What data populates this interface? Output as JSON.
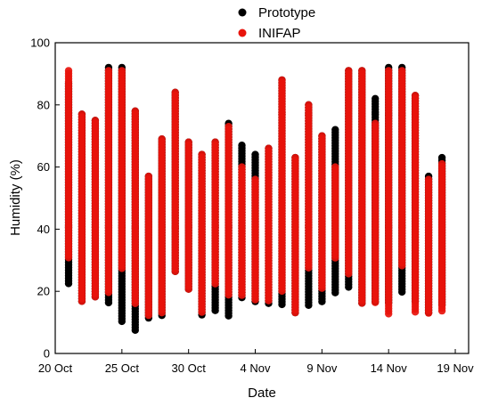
{
  "chart_data": {
    "type": "scatter",
    "title": "",
    "xlabel": "Date",
    "ylabel": "Humidity (%)",
    "ylim": [
      0,
      100
    ],
    "xlim": [
      "2023-10-20",
      "2023-11-20"
    ],
    "yticks": [
      0,
      20,
      40,
      60,
      80,
      100
    ],
    "xticks": [
      {
        "date": "2023-10-20",
        "label": "20 Oct"
      },
      {
        "date": "2023-10-25",
        "label": "25 Oct"
      },
      {
        "date": "2023-10-30",
        "label": "30 Oct"
      },
      {
        "date": "2023-11-04",
        "label": "4 Nov"
      },
      {
        "date": "2023-11-09",
        "label": "9 Nov"
      },
      {
        "date": "2023-11-14",
        "label": "14 Nov"
      },
      {
        "date": "2023-11-19",
        "label": "19 Nov"
      }
    ],
    "legend_position": "top-center",
    "grid": false,
    "series": [
      {
        "name": "Prototype",
        "color": "#000000",
        "ranges": [
          {
            "date": "2023-10-21",
            "min": 22,
            "max": 87
          },
          {
            "date": "2023-10-22",
            "min": 16,
            "max": 77
          },
          {
            "date": "2023-10-23",
            "min": 18,
            "max": 75
          },
          {
            "date": "2023-10-24",
            "min": 16,
            "max": 92
          },
          {
            "date": "2023-10-25",
            "min": 10,
            "max": 92
          },
          {
            "date": "2023-10-26",
            "min": 7,
            "max": 78
          },
          {
            "date": "2023-10-27",
            "min": 11,
            "max": 57
          },
          {
            "date": "2023-10-28",
            "min": 12,
            "max": 69
          },
          {
            "date": "2023-10-29",
            "min": 26,
            "max": 84
          },
          {
            "date": "2023-10-30",
            "min": 20,
            "max": 68
          },
          {
            "date": "2023-10-31",
            "min": 12,
            "max": 64
          },
          {
            "date": "2023-11-01",
            "min": 13,
            "max": 68
          },
          {
            "date": "2023-11-02",
            "min": 12,
            "max": 74
          },
          {
            "date": "2023-11-03",
            "min": 18,
            "max": 67
          },
          {
            "date": "2023-11-04",
            "min": 16,
            "max": 64
          },
          {
            "date": "2023-11-05",
            "min": 16,
            "max": 66
          },
          {
            "date": "2023-11-06",
            "min": 15,
            "max": 88
          },
          {
            "date": "2023-11-07",
            "min": 13,
            "max": 63
          },
          {
            "date": "2023-11-08",
            "min": 15,
            "max": 80
          },
          {
            "date": "2023-11-09",
            "min": 16,
            "max": 70
          },
          {
            "date": "2023-11-10",
            "min": 19,
            "max": 72
          },
          {
            "date": "2023-11-11",
            "min": 21,
            "max": 91
          },
          {
            "date": "2023-11-12",
            "min": 16,
            "max": 91
          },
          {
            "date": "2023-11-13",
            "min": 16,
            "max": 82
          },
          {
            "date": "2023-11-14",
            "min": 16,
            "max": 92
          },
          {
            "date": "2023-11-15",
            "min": 19,
            "max": 92
          },
          {
            "date": "2023-11-16",
            "min": 16,
            "max": 83
          },
          {
            "date": "2023-11-17",
            "min": 13,
            "max": 57
          },
          {
            "date": "2023-11-18",
            "min": 15,
            "max": 63
          }
        ]
      },
      {
        "name": "INIFAP",
        "color": "#e8140c",
        "ranges": [
          {
            "date": "2023-10-21",
            "min": 30,
            "max": 91
          },
          {
            "date": "2023-10-22",
            "min": 16,
            "max": 77
          },
          {
            "date": "2023-10-23",
            "min": 18,
            "max": 75
          },
          {
            "date": "2023-10-24",
            "min": 19,
            "max": 91
          },
          {
            "date": "2023-10-25",
            "min": 27,
            "max": 91
          },
          {
            "date": "2023-10-26",
            "min": 16,
            "max": 78
          },
          {
            "date": "2023-10-27",
            "min": 12,
            "max": 57
          },
          {
            "date": "2023-10-28",
            "min": 13,
            "max": 69
          },
          {
            "date": "2023-10-29",
            "min": 26,
            "max": 84
          },
          {
            "date": "2023-10-30",
            "min": 20,
            "max": 68
          },
          {
            "date": "2023-10-31",
            "min": 13,
            "max": 64
          },
          {
            "date": "2023-11-01",
            "min": 22,
            "max": 68
          },
          {
            "date": "2023-11-02",
            "min": 18,
            "max": 73
          },
          {
            "date": "2023-11-03",
            "min": 18,
            "max": 60
          },
          {
            "date": "2023-11-04",
            "min": 17,
            "max": 56
          },
          {
            "date": "2023-11-05",
            "min": 17,
            "max": 66
          },
          {
            "date": "2023-11-06",
            "min": 20,
            "max": 88
          },
          {
            "date": "2023-11-07",
            "min": 13,
            "max": 63
          },
          {
            "date": "2023-11-08",
            "min": 27,
            "max": 80
          },
          {
            "date": "2023-11-09",
            "min": 21,
            "max": 70
          },
          {
            "date": "2023-11-10",
            "min": 30,
            "max": 60
          },
          {
            "date": "2023-11-11",
            "min": 25,
            "max": 91
          },
          {
            "date": "2023-11-12",
            "min": 16,
            "max": 91
          },
          {
            "date": "2023-11-13",
            "min": 16,
            "max": 74
          },
          {
            "date": "2023-11-14",
            "min": 12,
            "max": 91
          },
          {
            "date": "2023-11-15",
            "min": 28,
            "max": 91
          },
          {
            "date": "2023-11-16",
            "min": 13,
            "max": 83
          },
          {
            "date": "2023-11-17",
            "min": 13,
            "max": 56
          },
          {
            "date": "2023-11-18",
            "min": 13,
            "max": 61
          }
        ]
      }
    ]
  }
}
